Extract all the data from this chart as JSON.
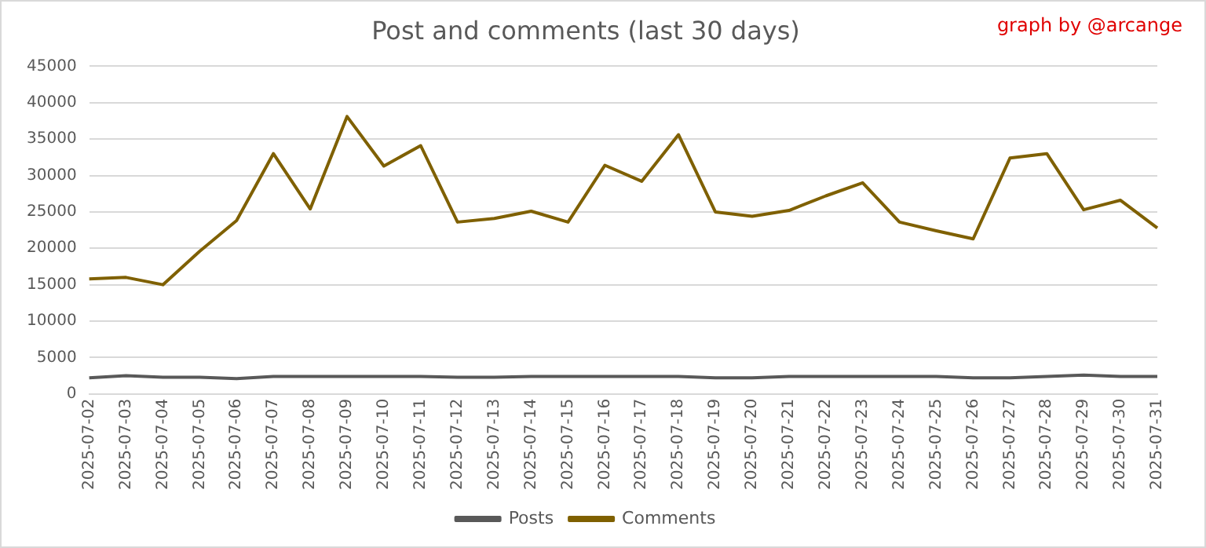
{
  "chart_data": {
    "type": "line",
    "title": "Post and comments (last 30 days)",
    "annotations": [
      "graph by @arcange"
    ],
    "categories": [
      "2025-07-02",
      "2025-07-03",
      "2025-07-04",
      "2025-07-05",
      "2025-07-06",
      "2025-07-07",
      "2025-07-08",
      "2025-07-09",
      "2025-07-10",
      "2025-07-11",
      "2025-07-12",
      "2025-07-13",
      "2025-07-14",
      "2025-07-15",
      "2025-07-16",
      "2025-07-17",
      "2025-07-18",
      "2025-07-19",
      "2025-07-20",
      "2025-07-21",
      "2025-07-22",
      "2025-07-23",
      "2025-07-24",
      "2025-07-25",
      "2025-07-26",
      "2025-07-27",
      "2025-07-28",
      "2025-07-29",
      "2025-07-30",
      "2025-07-31"
    ],
    "series": [
      {
        "name": "Posts",
        "color": "#595959",
        "values": [
          2200,
          2500,
          2300,
          2300,
          2100,
          2400,
          2400,
          2400,
          2400,
          2400,
          2300,
          2300,
          2400,
          2400,
          2400,
          2400,
          2400,
          2200,
          2200,
          2400,
          2400,
          2400,
          2400,
          2400,
          2200,
          2200,
          2400,
          2600,
          2400,
          2400
        ]
      },
      {
        "name": "Comments",
        "color": "#7f6000",
        "values": [
          15800,
          16000,
          15000,
          19600,
          23800,
          33000,
          25400,
          38100,
          31300,
          34100,
          23600,
          24100,
          25100,
          23600,
          31400,
          29200,
          35600,
          25000,
          24400,
          25200,
          27200,
          29000,
          23600,
          22400,
          21300,
          32400,
          33000,
          25300,
          26600,
          22800
        ]
      }
    ],
    "ylim": [
      0,
      45000
    ],
    "yticks": [
      0,
      5000,
      10000,
      15000,
      20000,
      25000,
      30000,
      35000,
      40000,
      45000
    ],
    "grid": "y",
    "legend": "bottom",
    "marker": "none",
    "line_style": "solid"
  }
}
